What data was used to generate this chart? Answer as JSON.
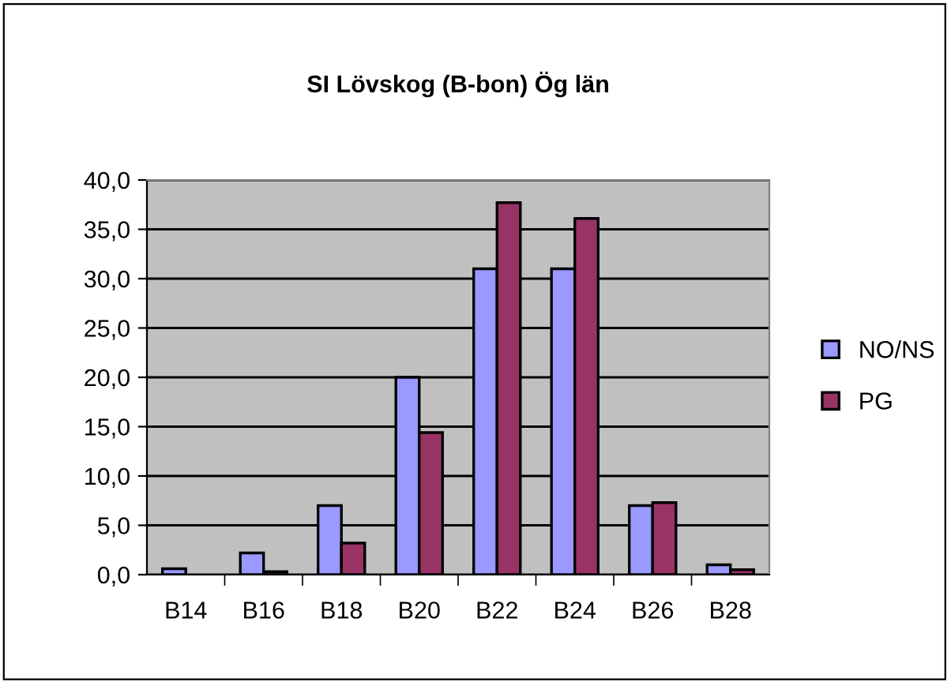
{
  "chart_data": {
    "type": "bar",
    "title": "SI Lövskog (B-bon) Ög län",
    "categories": [
      "B14",
      "B16",
      "B18",
      "B20",
      "B22",
      "B24",
      "B26",
      "B28"
    ],
    "series": [
      {
        "name": "NO/NS",
        "color": "#9999ff",
        "values": [
          0.6,
          2.2,
          7.0,
          20.0,
          31.0,
          31.0,
          7.0,
          1.0
        ]
      },
      {
        "name": "PG",
        "color": "#993366",
        "values": [
          null,
          0.3,
          3.2,
          14.4,
          37.7,
          36.1,
          7.3,
          0.5
        ]
      }
    ],
    "ylim": [
      0,
      40
    ],
    "yticks": [
      {
        "value": 0,
        "label": "0,0"
      },
      {
        "value": 5,
        "label": "5,0"
      },
      {
        "value": 10,
        "label": "10,0"
      },
      {
        "value": 15,
        "label": "15,0"
      },
      {
        "value": 20,
        "label": "20,0"
      },
      {
        "value": 25,
        "label": "25,0"
      },
      {
        "value": 30,
        "label": "30,0"
      },
      {
        "value": 35,
        "label": "35,0"
      },
      {
        "value": 40,
        "label": "40,0"
      }
    ],
    "grid": "y",
    "legend": "right"
  }
}
